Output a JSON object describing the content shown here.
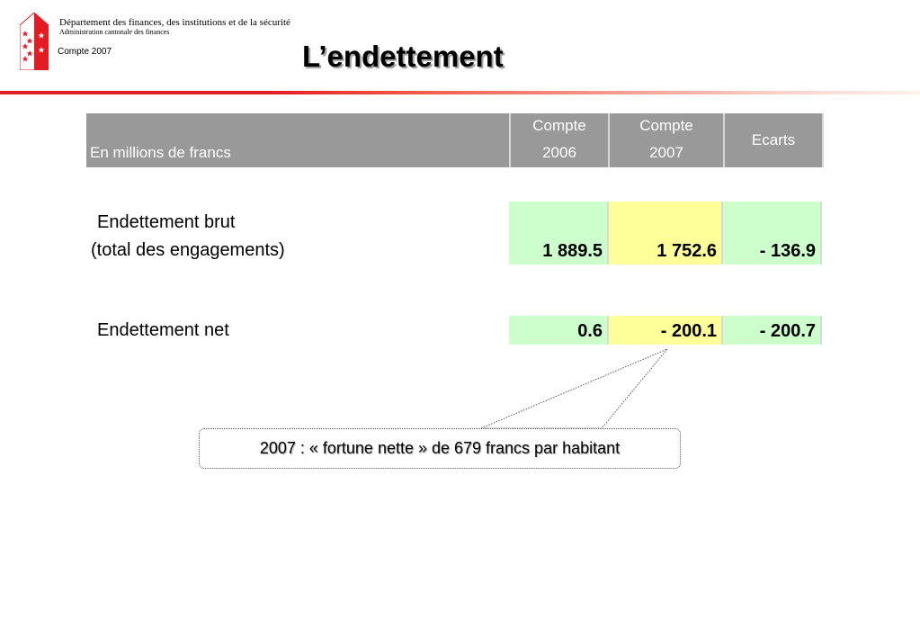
{
  "header": {
    "department": "Département des finances, des institutions et de la sécurité",
    "administration": "Administration cantonale des finances",
    "compte_label": "Compte 2007",
    "title": "L’endettement",
    "logo_icon": "valais-coat-of-arms-icon",
    "accent_color": "#e31b23"
  },
  "table": {
    "unit_label": "En millions de francs",
    "columns": [
      {
        "line1": "Compte",
        "line2": "2006"
      },
      {
        "line1": "Compte",
        "line2": "2007"
      },
      {
        "label": "Ecarts"
      }
    ],
    "rows": [
      {
        "label_line1": "Endettement brut",
        "label_line2": "(total des engagements)",
        "values": [
          "1 889.5",
          "1 752.6",
          "- 136.9"
        ]
      },
      {
        "label_line1": "Endettement net",
        "values": [
          "0.6",
          "- 200.1",
          "- 200.7"
        ]
      }
    ]
  },
  "callout": {
    "text": "2007 : « fortune nette » de 679 francs par habitant"
  }
}
